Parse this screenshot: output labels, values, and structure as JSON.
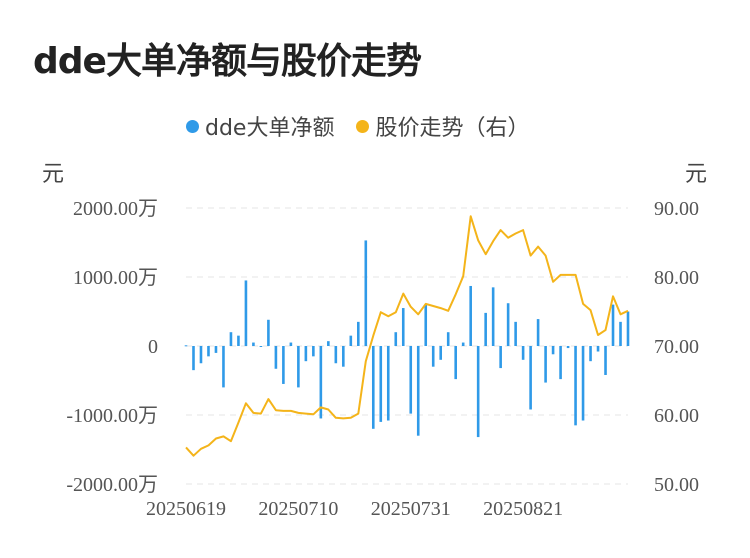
{
  "title": "dde大单净额与股价走势",
  "legend": [
    {
      "label": "dde大单净额",
      "color": "#2f9ae8"
    },
    {
      "label": "股价走势（右）",
      "color": "#f4b41a"
    }
  ],
  "units": {
    "left": "元",
    "right": "元"
  },
  "chart_data": {
    "type": "bar+line",
    "left_axis": {
      "ticks": [
        2000,
        1000,
        0,
        -1000,
        -2000
      ],
      "tick_labels": [
        "2000.00万",
        "1000.00万",
        "0",
        "-1000.00万",
        "-2000.00万"
      ],
      "ylim": [
        -2000,
        2000
      ]
    },
    "right_axis": {
      "ticks": [
        90,
        80,
        70,
        60,
        50
      ],
      "tick_labels": [
        "90.00",
        "80.00",
        "70.00",
        "60.00",
        "50.00"
      ],
      "ylim": [
        50,
        90
      ]
    },
    "x_tick_labels": [
      {
        "label": "20250619",
        "index": 0
      },
      {
        "label": "20250710",
        "index": 15
      },
      {
        "label": "20250731",
        "index": 30
      },
      {
        "label": "20250821",
        "index": 45
      }
    ],
    "grid": true,
    "series": [
      {
        "name": "dde大单净额",
        "type": "bar",
        "color": "#2f9ae8",
        "axis": "left",
        "values": [
          10,
          -350,
          -250,
          -150,
          -100,
          -600,
          200,
          150,
          950,
          50,
          0,
          380,
          -330,
          -550,
          50,
          -600,
          -220,
          -150,
          -1050,
          70,
          -250,
          -300,
          150,
          350,
          1530,
          -1200,
          -1100,
          -1080,
          200,
          550,
          -980,
          -1300,
          600,
          -300,
          -200,
          200,
          -480,
          50,
          870,
          -1320,
          480,
          850,
          -320,
          620,
          350,
          -200,
          -920,
          390,
          -530,
          -120,
          -480,
          -30,
          -1150,
          -1080,
          -220,
          -80,
          -420,
          600,
          350,
          500
        ]
      },
      {
        "name": "股价走势（右）",
        "type": "line",
        "color": "#f4b41a",
        "axis": "right",
        "values": [
          55.3,
          54.1,
          55.1,
          55.6,
          56.6,
          56.9,
          56.2,
          58.9,
          61.7,
          60.3,
          60.2,
          62.3,
          60.7,
          60.6,
          60.6,
          60.3,
          60.2,
          60.1,
          61.1,
          60.8,
          59.6,
          59.5,
          59.6,
          60.2,
          67.8,
          71.5,
          74.9,
          74.3,
          74.9,
          77.6,
          75.7,
          74.6,
          76.1,
          75.8,
          75.5,
          75.1,
          77.5,
          80.1,
          88.8,
          85.3,
          83.3,
          85.2,
          86.8,
          85.7,
          86.3,
          86.8,
          83.1,
          84.4,
          83.1,
          79.3,
          80.3,
          80.3,
          80.3,
          76.1,
          75.2,
          71.6,
          72.3,
          77.2,
          74.6,
          75.1
        ]
      }
    ]
  }
}
